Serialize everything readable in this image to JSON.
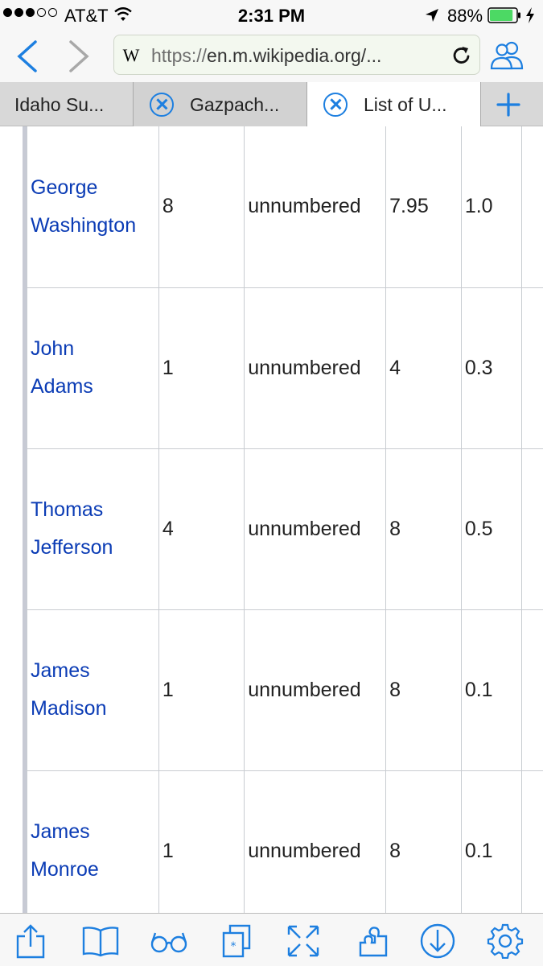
{
  "status_bar": {
    "carrier": "AT&T",
    "time": "2:31 PM",
    "battery": "88%",
    "battery_level": 0.88
  },
  "browser": {
    "url_scheme": "https://",
    "url_host": "en.m.wikipedia.org/...",
    "site_icon": "W"
  },
  "tabs": [
    {
      "label": "Idaho Su..."
    },
    {
      "label": "Gazpach..."
    },
    {
      "label": "List of U..."
    }
  ],
  "table": {
    "rows": [
      {
        "name_1": "George",
        "name_2": "Washington",
        "c2": "8",
        "c3": "unnumbered",
        "c4": "7.95",
        "c5": "1.0"
      },
      {
        "name_1": "John",
        "name_2": "Adams",
        "c2": "1",
        "c3": "unnumbered",
        "c4": "4",
        "c5": "0.3"
      },
      {
        "name_1": "Thomas",
        "name_2": "Jefferson",
        "c2": "4",
        "c3": "unnumbered",
        "c4": "8",
        "c5": "0.5"
      },
      {
        "name_1": "James",
        "name_2": "Madison",
        "c2": "1",
        "c3": "unnumbered",
        "c4": "8",
        "c5": "0.1"
      },
      {
        "name_1": "James",
        "name_2": "Monroe",
        "c2": "1",
        "c3": "unnumbered",
        "c4": "8",
        "c5": "0.1"
      }
    ]
  },
  "colors": {
    "accent": "#1d7fe0",
    "link": "#0b3cb5",
    "battery_green": "#4cd964"
  },
  "toolbar_icons": [
    "share-icon",
    "bookmarks-icon",
    "reader-glasses-icon",
    "tabs-icon",
    "fullscreen-icon",
    "extensions-icon",
    "download-icon",
    "settings-gear-icon"
  ]
}
